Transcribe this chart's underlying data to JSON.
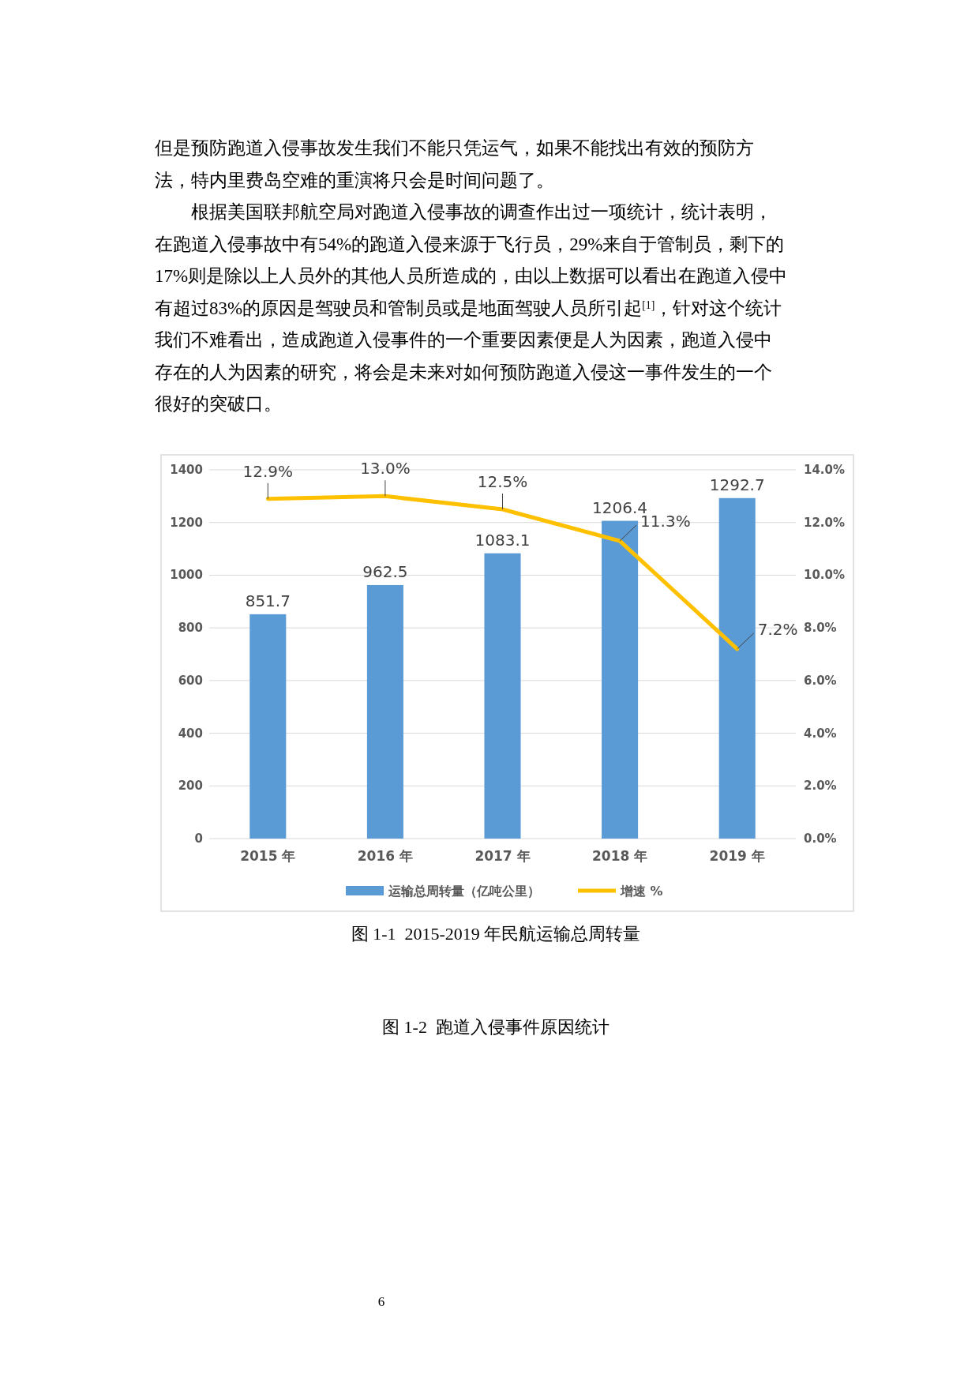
{
  "chart_data": {
    "type": "bar",
    "categories": [
      "2015 年",
      "2016 年",
      "2017 年",
      "2018 年",
      "2019 年"
    ],
    "series": [
      {
        "name": "运输总周转量（亿吨公里）",
        "color": "#5b9bd5",
        "values": [
          851.7,
          962.5,
          1083.1,
          1206.4,
          1292.7
        ],
        "value_labels": [
          "851.7",
          "962.5",
          "1083.1",
          "1206.4",
          "1292.7"
        ]
      },
      {
        "name": "增速 %",
        "type": "line",
        "axis": "y2",
        "color": "#ffc000",
        "values": [
          12.9,
          13.0,
          12.5,
          11.3,
          7.2
        ],
        "value_labels": [
          "12.9%",
          "13.0%",
          "12.5%",
          "11.3%",
          "7.2%"
        ]
      }
    ],
    "ylim": [
      0,
      1400
    ],
    "yticks": [
      0,
      200,
      400,
      600,
      800,
      1000,
      1200,
      1400
    ],
    "y2lim": [
      0,
      14
    ],
    "y2ticks": [
      {
        "value": 0,
        "label": "0.0%"
      },
      {
        "value": 2,
        "label": "2.0%"
      },
      {
        "value": 4,
        "label": "4.0%"
      },
      {
        "value": 6,
        "label": "6.0%"
      },
      {
        "value": 8,
        "label": "8.0%"
      },
      {
        "value": 10,
        "label": "10.0%"
      },
      {
        "value": 12,
        "label": "12.0%"
      },
      {
        "value": 14,
        "label": "14.0%"
      }
    ],
    "grid": "y",
    "legend": "bottom",
    "marker": "none",
    "annotations": [
      "但是预防跑道入侵事故发生我们不能只凭运气，如果不能找出有效的预防方",
      "法，特内里费岛空难的重演将只会是时间问题了。",
      "　　根据美国联邦航空局对跑道入侵事故的调查作出过一项统计，统计表明，",
      "在跑道入侵事故中有54%的跑道入侵来源于飞行员，29%来自于管制员，剩下的",
      "17%则是除以上人员外的其他人员所造成的，由以上数据可以看出在跑道入侵中",
      "有超过83%的原因是驾驶员和管制员或是地面驾驶人员所引起$^{[1]}$，针对这个统计",
      "我们不难看出，造成跑道入侵事件的一个重要因素便是人为因素，跑道入侵中",
      "存在的人为因素的研究，将会是未来对如何预防跑道入侵这一事件发生的一个",
      "很好的突破口。",
      "图 1-1  2015-2019 年民航运输总周转量",
      "图 1-2  跑道入侵事件原因统计",
      "6"
    ]
  }
}
